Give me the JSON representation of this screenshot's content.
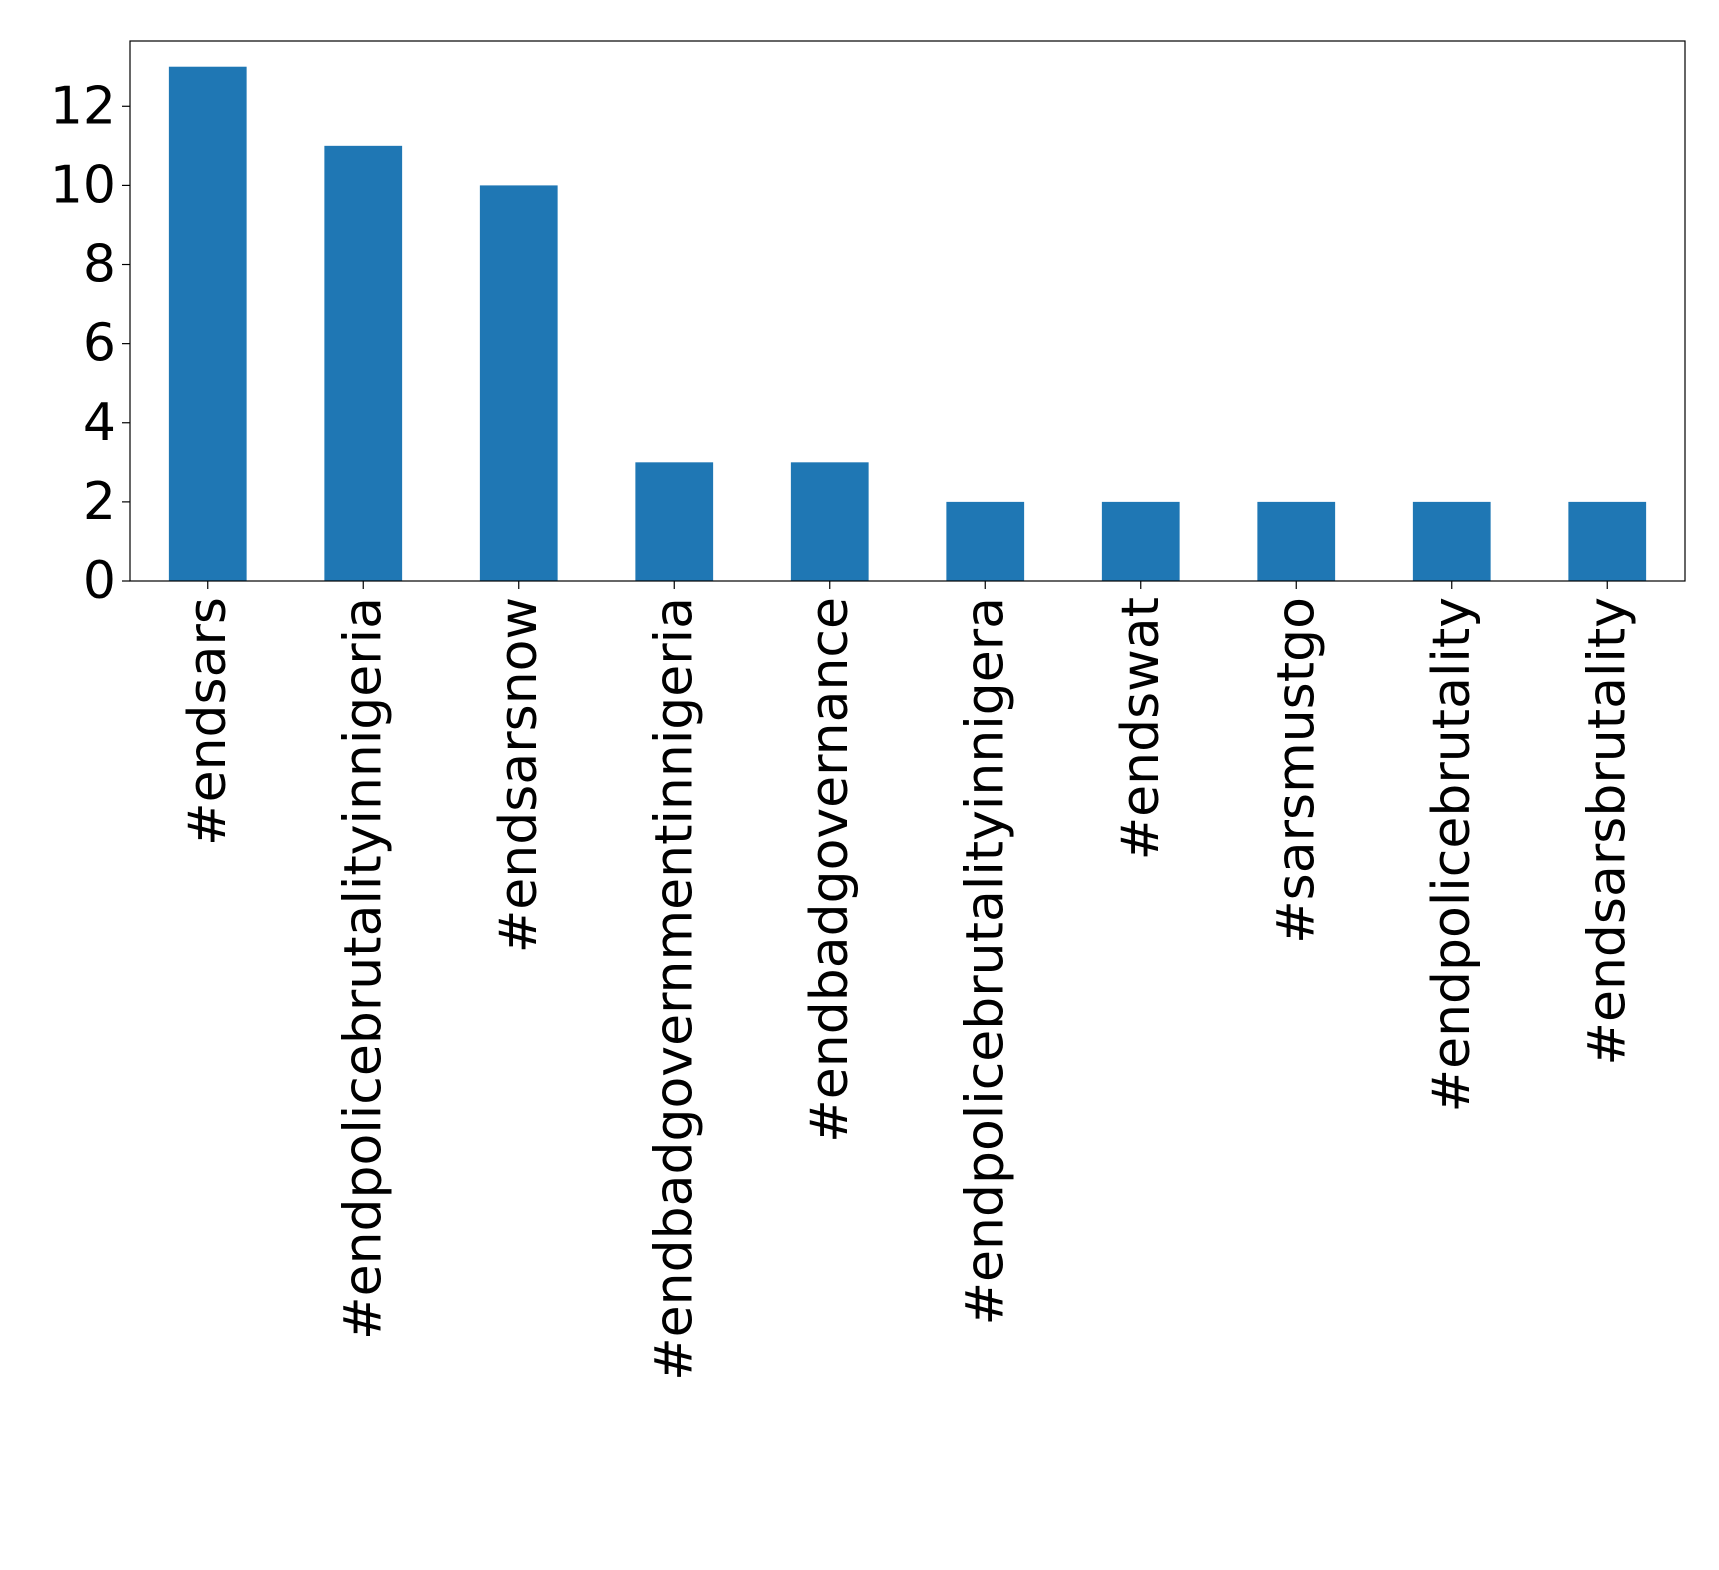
{
  "chart_data": {
    "type": "bar",
    "categories": [
      "#endsars",
      "#endpolicebrutalityinnigeria",
      "#endsarsnow",
      "#endbadgovernmentinnigeria",
      "#endbadgovernance",
      "#endpolicebrutalityinnigera",
      "#endswat",
      "#sarsmustgo",
      "#endpolicebrutality",
      "#endsarsbrutality"
    ],
    "values": [
      13,
      11,
      10,
      3,
      3,
      2,
      2,
      2,
      2,
      2
    ],
    "ylim": [
      0,
      13.65
    ],
    "yticks": [
      0,
      2,
      4,
      6,
      8,
      10,
      12
    ],
    "bar_color": "#1f77b4",
    "grid": false,
    "legend": "none"
  }
}
